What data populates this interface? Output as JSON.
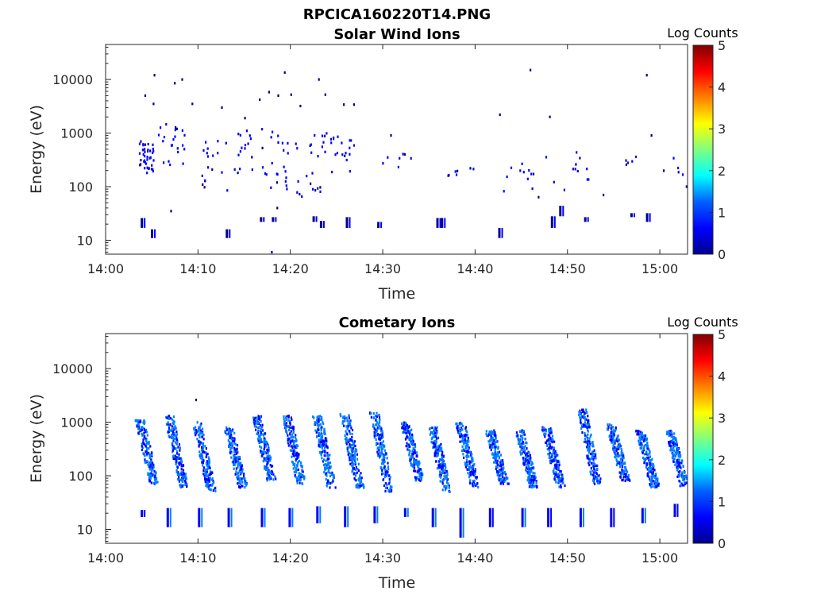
{
  "figure_title": "RPCICA160220T14.PNG",
  "colormap": [
    "#00008f",
    "#0000ff",
    "#0080ff",
    "#00ffff",
    "#80ff80",
    "#ffff00",
    "#ff8000",
    "#ff0000",
    "#800000"
  ],
  "chart_data": [
    {
      "type": "heatmap",
      "title": "Solar Wind Ions",
      "xlabel": "Time",
      "ylabel": "Energy (eV)",
      "x_ticks": [
        "14:00",
        "14:10",
        "14:20",
        "14:30",
        "14:40",
        "14:50",
        "15:00"
      ],
      "x_tick_minutes": [
        0,
        10,
        20,
        30,
        40,
        50,
        60
      ],
      "xlim_minutes": [
        0,
        63
      ],
      "y_scale": "log",
      "ylim": [
        5.5,
        45000
      ],
      "y_ticks": [
        10,
        100,
        1000,
        10000
      ],
      "y_tick_labels": [
        "10",
        "100",
        "1000",
        "10000"
      ],
      "colorbar": {
        "label": "Log Counts",
        "range": [
          0,
          5
        ],
        "ticks": [
          "0",
          "1",
          "2",
          "3",
          "4",
          "5"
        ]
      },
      "clusters": [
        {
          "t": [
            3.6,
            5.2
          ],
          "e": [
            180,
            700
          ],
          "n": 40,
          "level": 0.25
        },
        {
          "t": [
            5.5,
            8.6
          ],
          "e": [
            180,
            1500
          ],
          "n": 22,
          "level": 0.25
        },
        {
          "t": [
            10.3,
            13.2
          ],
          "e": [
            80,
            800
          ],
          "n": 18,
          "level": 0.25
        },
        {
          "t": [
            13.5,
            15.8
          ],
          "e": [
            180,
            1200
          ],
          "n": 16,
          "level": 0.25
        },
        {
          "t": [
            16.5,
            19.8
          ],
          "e": [
            90,
            1500
          ],
          "n": 24,
          "level": 0.25
        },
        {
          "t": [
            20.5,
            23.8
          ],
          "e": [
            60,
            1000
          ],
          "n": 24,
          "level": 0.25
        },
        {
          "t": [
            23.8,
            26.9
          ],
          "e": [
            180,
            1000
          ],
          "n": 20,
          "level": 0.25
        },
        {
          "t": [
            29.5,
            33.2
          ],
          "e": [
            200,
            500
          ],
          "n": 6,
          "level": 0.25
        },
        {
          "t": [
            36.5,
            40.2
          ],
          "e": [
            160,
            250
          ],
          "n": 5,
          "level": 0.25
        },
        {
          "t": [
            42.5,
            46.8
          ],
          "e": [
            60,
            280
          ],
          "n": 12,
          "level": 0.25
        },
        {
          "t": [
            47.5,
            52.3
          ],
          "e": [
            80,
            450
          ],
          "n": 12,
          "level": 0.25
        },
        {
          "t": [
            55.2,
            58.6
          ],
          "e": [
            220,
            380
          ],
          "n": 5,
          "level": 0.25
        },
        {
          "t": [
            60.2,
            62.8
          ],
          "e": [
            150,
            400
          ],
          "n": 5,
          "level": 0.25
        }
      ],
      "points": [
        {
          "t": 5.2,
          "e": 12000
        },
        {
          "t": 7.4,
          "e": 8500
        },
        {
          "t": 8.2,
          "e": 10000
        },
        {
          "t": 4.2,
          "e": 5000
        },
        {
          "t": 5.1,
          "e": 3500
        },
        {
          "t": 9.3,
          "e": 3500
        },
        {
          "t": 12.5,
          "e": 3000
        },
        {
          "t": 15.0,
          "e": 1900
        },
        {
          "t": 16.6,
          "e": 4200
        },
        {
          "t": 17.6,
          "e": 5800
        },
        {
          "t": 18.6,
          "e": 5000
        },
        {
          "t": 19.3,
          "e": 13500
        },
        {
          "t": 20.0,
          "e": 5200
        },
        {
          "t": 21.0,
          "e": 3200
        },
        {
          "t": 23.0,
          "e": 10000
        },
        {
          "t": 23.7,
          "e": 5200
        },
        {
          "t": 25.7,
          "e": 3400
        },
        {
          "t": 30.8,
          "e": 900
        },
        {
          "t": 32.3,
          "e": 400
        },
        {
          "t": 26.8,
          "e": 3400
        },
        {
          "t": 37.0,
          "e": 160
        },
        {
          "t": 39.4,
          "e": 220
        },
        {
          "t": 42.6,
          "e": 2200
        },
        {
          "t": 45.9,
          "e": 15000
        },
        {
          "t": 48.0,
          "e": 2000
        },
        {
          "t": 58.5,
          "e": 12000
        },
        {
          "t": 59.0,
          "e": 900
        },
        {
          "t": 62.8,
          "e": 100
        },
        {
          "t": 7.0,
          "e": 35
        },
        {
          "t": 18.5,
          "e": 40
        },
        {
          "t": 17.9,
          "e": 6
        },
        {
          "t": 53.8,
          "e": 70
        }
      ],
      "low_blocks": [
        {
          "t": 3.8,
          "e": [
            17,
            26
          ],
          "level": 0.3
        },
        {
          "t": 4.9,
          "e": [
            11,
            16
          ],
          "level": 0.3
        },
        {
          "t": 13.0,
          "e": [
            11,
            16
          ],
          "level": 0.3
        },
        {
          "t": 16.7,
          "e": [
            22,
            27
          ],
          "level": 0.3
        },
        {
          "t": 18.0,
          "e": [
            22,
            27
          ],
          "level": 0.3
        },
        {
          "t": 22.4,
          "e": [
            22,
            28
          ],
          "level": 0.3
        },
        {
          "t": 23.2,
          "e": [
            17,
            23
          ],
          "level": 0.3
        },
        {
          "t": 26.0,
          "e": [
            17,
            27
          ],
          "level": 0.3
        },
        {
          "t": 29.4,
          "e": [
            17,
            22
          ],
          "level": 0.3
        },
        {
          "t": 35.8,
          "e": [
            17,
            26
          ],
          "level": 0.3
        },
        {
          "t": 36.3,
          "e": [
            17,
            26
          ],
          "level": 0.3
        },
        {
          "t": 42.5,
          "e": [
            11,
            17
          ],
          "level": 0.3
        },
        {
          "t": 48.2,
          "e": [
            17,
            28
          ],
          "level": 0.3
        },
        {
          "t": 49.1,
          "e": [
            28,
            44
          ],
          "level": 0.3
        },
        {
          "t": 51.8,
          "e": [
            22,
            27
          ],
          "level": 0.3
        },
        {
          "t": 56.8,
          "e": [
            27,
            32
          ],
          "level": 0.3
        },
        {
          "t": 58.5,
          "e": [
            22,
            32
          ],
          "level": 0.3
        }
      ]
    },
    {
      "type": "heatmap",
      "title": "Cometary Ions",
      "xlabel": "Time",
      "ylabel": "Energy (eV)",
      "x_ticks": [
        "14:00",
        "14:10",
        "14:20",
        "14:30",
        "14:40",
        "14:50",
        "15:00"
      ],
      "x_tick_minutes": [
        0,
        10,
        20,
        30,
        40,
        50,
        60
      ],
      "xlim_minutes": [
        0,
        63
      ],
      "y_scale": "log",
      "ylim": [
        5.5,
        45000
      ],
      "y_ticks": [
        10,
        100,
        1000,
        10000
      ],
      "y_tick_labels": [
        "10",
        "100",
        "1000",
        "10000"
      ],
      "colorbar": {
        "label": "Log Counts",
        "range": [
          0,
          5
        ],
        "ticks": [
          "0",
          "1",
          "2",
          "3",
          "4",
          "5"
        ]
      },
      "bursts": [
        {
          "t": 3.6,
          "e_top": 1100,
          "e_bottom": 70,
          "level": 0.7
        },
        {
          "t": 6.8,
          "e_top": 1300,
          "e_bottom": 60,
          "level": 0.7
        },
        {
          "t": 9.8,
          "e_top": 1000,
          "e_bottom": 50,
          "level": 0.7
        },
        {
          "t": 13.2,
          "e_top": 800,
          "e_bottom": 60,
          "level": 0.7
        },
        {
          "t": 16.3,
          "e_top": 1300,
          "e_bottom": 80,
          "level": 0.7
        },
        {
          "t": 19.5,
          "e_top": 1400,
          "e_bottom": 70,
          "level": 0.7
        },
        {
          "t": 22.8,
          "e_top": 1300,
          "e_bottom": 60,
          "level": 0.7
        },
        {
          "t": 25.8,
          "e_top": 1400,
          "e_bottom": 60,
          "level": 0.7
        },
        {
          "t": 29.0,
          "e_top": 1500,
          "e_bottom": 50,
          "level": 0.7
        },
        {
          "t": 32.3,
          "e_top": 1000,
          "e_bottom": 80,
          "level": 0.7
        },
        {
          "t": 35.3,
          "e_top": 800,
          "e_bottom": 50,
          "level": 0.7
        },
        {
          "t": 38.3,
          "e_top": 1000,
          "e_bottom": 60,
          "level": 0.7
        },
        {
          "t": 41.5,
          "e_top": 700,
          "e_bottom": 70,
          "level": 0.7
        },
        {
          "t": 44.7,
          "e_top": 700,
          "e_bottom": 60,
          "level": 0.7
        },
        {
          "t": 47.6,
          "e_top": 800,
          "e_bottom": 60,
          "level": 0.7
        },
        {
          "t": 51.5,
          "e_top": 1700,
          "e_bottom": 70,
          "level": 0.7
        },
        {
          "t": 54.6,
          "e_top": 900,
          "e_bottom": 80,
          "level": 0.7
        },
        {
          "t": 57.8,
          "e_top": 700,
          "e_bottom": 60,
          "level": 0.7
        },
        {
          "t": 61.0,
          "e_top": 700,
          "e_bottom": 60,
          "level": 0.7
        }
      ],
      "low_blocks": [
        {
          "t": 3.8,
          "e": [
            17,
            23
          ],
          "level": 0.6
        },
        {
          "t": 6.6,
          "e": [
            11,
            25
          ],
          "level": 0.7
        },
        {
          "t": 10.0,
          "e": [
            11,
            25
          ],
          "level": 0.7
        },
        {
          "t": 13.2,
          "e": [
            11,
            25
          ],
          "level": 0.7
        },
        {
          "t": 16.8,
          "e": [
            11,
            25
          ],
          "level": 0.9
        },
        {
          "t": 19.8,
          "e": [
            11,
            25
          ],
          "level": 0.7
        },
        {
          "t": 22.8,
          "e": [
            13,
            27
          ],
          "level": 0.8
        },
        {
          "t": 25.8,
          "e": [
            11,
            27
          ],
          "level": 0.7
        },
        {
          "t": 29.0,
          "e": [
            13,
            27
          ],
          "level": 0.7
        },
        {
          "t": 32.3,
          "e": [
            17,
            25
          ],
          "level": 0.7
        },
        {
          "t": 35.3,
          "e": [
            11,
            25
          ],
          "level": 0.8
        },
        {
          "t": 38.3,
          "e": [
            7,
            25
          ],
          "level": 0.7
        },
        {
          "t": 41.5,
          "e": [
            11,
            25
          ],
          "level": 0.6
        },
        {
          "t": 45.0,
          "e": [
            11,
            25
          ],
          "level": 0.7
        },
        {
          "t": 47.8,
          "e": [
            11,
            25
          ],
          "level": 0.6
        },
        {
          "t": 51.3,
          "e": [
            11,
            25
          ],
          "level": 0.7
        },
        {
          "t": 54.6,
          "e": [
            11,
            25
          ],
          "level": 0.6
        },
        {
          "t": 58.0,
          "e": [
            13,
            25
          ],
          "level": 0.8
        },
        {
          "t": 61.5,
          "e": [
            17,
            30
          ],
          "level": 0.6
        }
      ],
      "points": [
        {
          "t": 9.7,
          "e": 2600
        },
        {
          "t": 51.6,
          "e": 1700
        }
      ]
    }
  ]
}
